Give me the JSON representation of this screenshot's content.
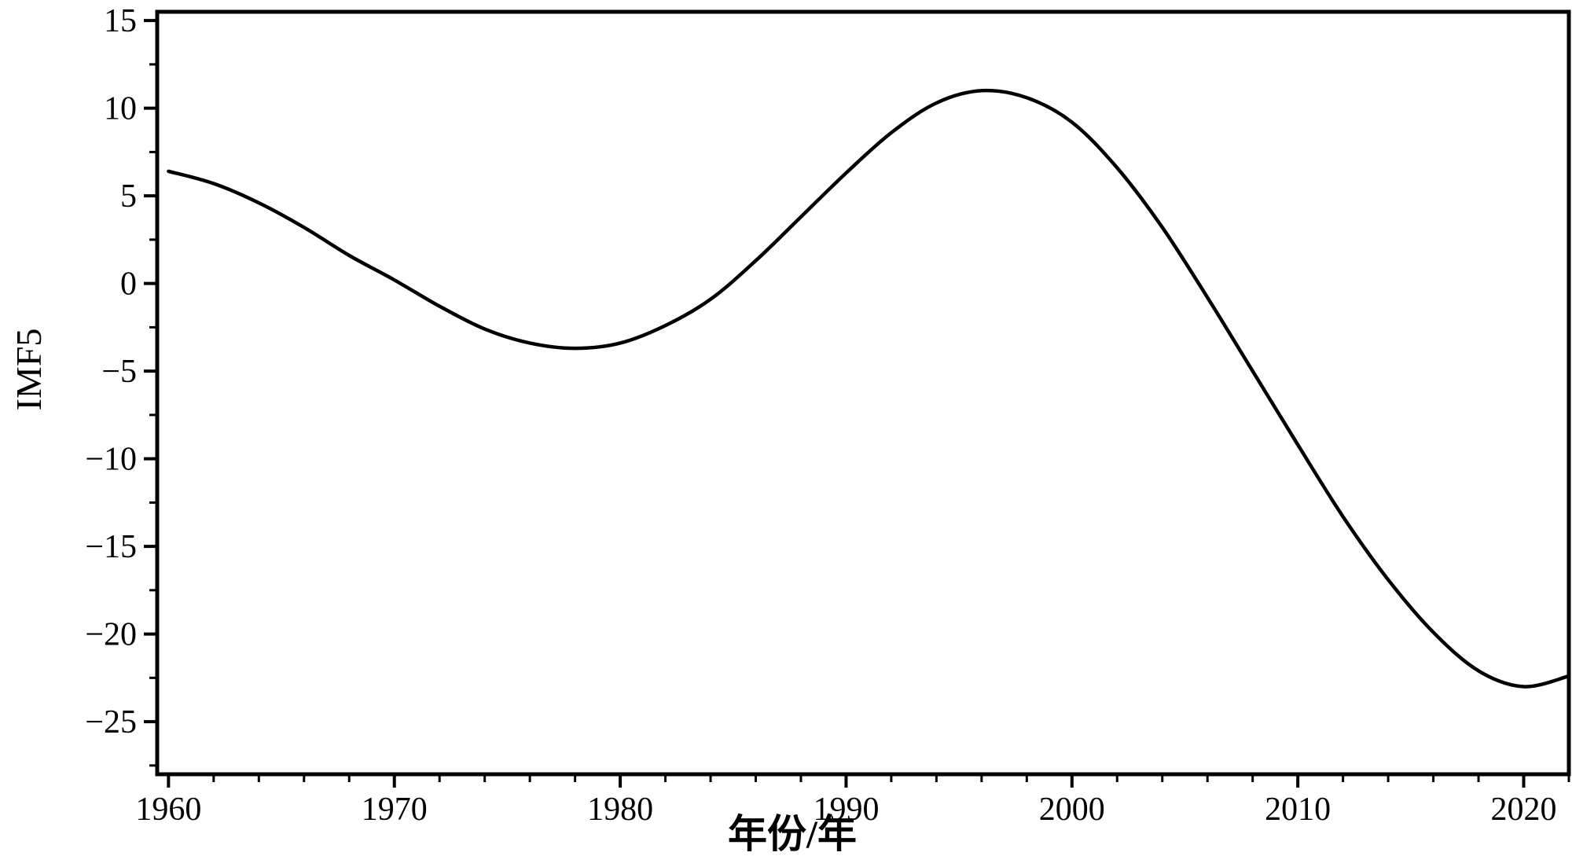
{
  "chart_data": {
    "type": "line",
    "title": "",
    "xlabel": "年份/年",
    "ylabel": "IMF5",
    "xlim": [
      1959.5,
      2022
    ],
    "ylim": [
      -28,
      15.5
    ],
    "x_ticks": [
      1960,
      1970,
      1980,
      1990,
      2000,
      2010,
      2020
    ],
    "x_tick_labels": [
      "1960",
      "1970",
      "1980",
      "1990",
      "2000",
      "2010",
      "2020"
    ],
    "y_ticks": [
      15,
      10,
      5,
      0,
      -5,
      -10,
      -15,
      -20,
      -25
    ],
    "y_tick_labels": [
      "15",
      "10",
      "5",
      "0",
      "−5",
      "−10",
      "−15",
      "−20",
      "−25"
    ],
    "x_minor_step": 2,
    "y_minor_step": 2.5,
    "grid": false,
    "legend": "none",
    "line_color": "#000000",
    "line_width": 4.5,
    "background_color": "#ffffff",
    "series": [
      {
        "name": "IMF5",
        "x": [
          1960,
          1962,
          1964,
          1966,
          1968,
          1970,
          1972,
          1974,
          1976,
          1978,
          1980,
          1982,
          1984,
          1986,
          1988,
          1990,
          1992,
          1994,
          1996,
          1998,
          2000,
          2002,
          2004,
          2006,
          2008,
          2010,
          2012,
          2014,
          2016,
          2018,
          2020,
          2022
        ],
        "y": [
          6.4,
          5.7,
          4.6,
          3.2,
          1.6,
          0.2,
          -1.3,
          -2.6,
          -3.4,
          -3.7,
          -3.4,
          -2.4,
          -0.9,
          1.3,
          3.8,
          6.3,
          8.6,
          10.3,
          11.0,
          10.6,
          9.2,
          6.6,
          3.2,
          -0.8,
          -5.0,
          -9.2,
          -13.3,
          -16.9,
          -19.9,
          -22.1,
          -23.0,
          -22.4
        ]
      }
    ],
    "annotations": {
      "local_min_1": {
        "x": 1978,
        "y": -3.7
      },
      "local_max": {
        "x": 1996,
        "y": 11.0
      },
      "local_min_2": {
        "x": 2020,
        "y": -23.0
      }
    }
  }
}
